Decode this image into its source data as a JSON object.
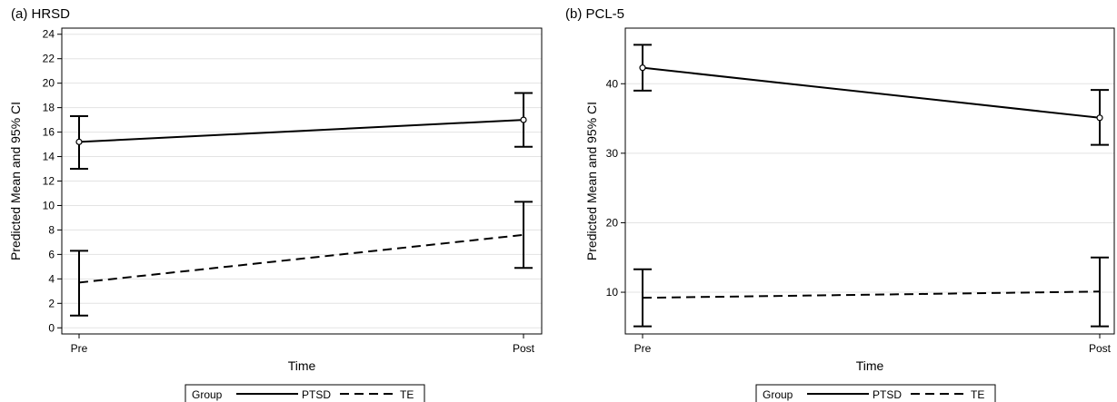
{
  "chart_data": [
    {
      "type": "line",
      "title": "(a) HRSD",
      "xlabel": "Time",
      "ylabel": "Predicted Mean and 95% CI",
      "categories": [
        "Pre",
        "Post"
      ],
      "ylim": [
        -0.5,
        24.5
      ],
      "yticks": [
        0,
        2,
        4,
        6,
        8,
        10,
        12,
        14,
        16,
        18,
        20,
        22,
        24
      ],
      "grid": true,
      "legend": {
        "title": "Group",
        "position": "bottom"
      },
      "series": [
        {
          "name": "PTSD",
          "style": "solid",
          "marker": "circle",
          "values": [
            15.2,
            17.0
          ],
          "ci_low": [
            13.0,
            14.8
          ],
          "ci_high": [
            17.3,
            19.2
          ]
        },
        {
          "name": "TE",
          "style": "dashed",
          "marker": "none",
          "values": [
            3.7,
            7.6
          ],
          "ci_low": [
            1.0,
            4.9
          ],
          "ci_high": [
            6.3,
            10.3
          ]
        }
      ]
    },
    {
      "type": "line",
      "title": "(b) PCL-5",
      "xlabel": "Time",
      "ylabel": "Predicted Mean and 95% CI",
      "categories": [
        "Pre",
        "Post"
      ],
      "ylim": [
        4,
        48
      ],
      "yticks": [
        10,
        20,
        30,
        40
      ],
      "grid": true,
      "legend": {
        "title": "Group",
        "position": "bottom"
      },
      "series": [
        {
          "name": "PTSD",
          "style": "solid",
          "marker": "circle",
          "values": [
            42.3,
            35.1
          ],
          "ci_low": [
            39.0,
            31.2
          ],
          "ci_high": [
            45.6,
            39.1
          ]
        },
        {
          "name": "TE",
          "style": "dashed",
          "marker": "none",
          "values": [
            9.2,
            10.1
          ],
          "ci_low": [
            5.1,
            5.1
          ],
          "ci_high": [
            13.3,
            15.0
          ]
        }
      ]
    }
  ]
}
